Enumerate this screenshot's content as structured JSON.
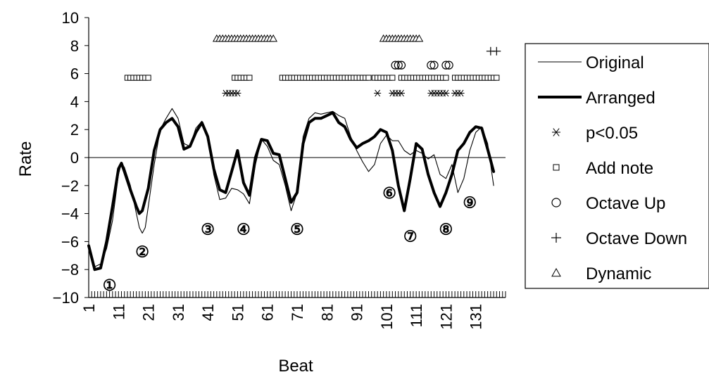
{
  "chart_data": {
    "type": "line",
    "xlabel": "Beat",
    "ylabel": "Rate",
    "ylim": [
      -10,
      10
    ],
    "yticks": [
      10,
      8,
      6,
      4,
      2,
      0,
      -2,
      -4,
      -6,
      -8,
      -10
    ],
    "ytick_labels": [
      "10",
      "8",
      "6",
      "4",
      "2",
      "0",
      "−2",
      "−4",
      "−6",
      "−8",
      "−10"
    ],
    "xlim": [
      1,
      141
    ],
    "xticks": [
      1,
      11,
      21,
      31,
      41,
      51,
      61,
      71,
      81,
      91,
      101,
      111,
      121,
      131
    ],
    "xtick_labels": [
      "1",
      "11",
      "21",
      "31",
      "41",
      "51",
      "61",
      "71",
      "81",
      "91",
      "101",
      "111",
      "121",
      "131"
    ],
    "zero_line": true,
    "series": [
      {
        "name": "Original",
        "style": "thin",
        "points": [
          [
            1,
            -6.5
          ],
          [
            3,
            -7.8
          ],
          [
            5,
            -7.6
          ],
          [
            7,
            -6.5
          ],
          [
            9,
            -4.5
          ],
          [
            11,
            -1.2
          ],
          [
            12,
            -0.4
          ],
          [
            13,
            -0.7
          ],
          [
            15,
            -2
          ],
          [
            17,
            -4
          ],
          [
            18,
            -5
          ],
          [
            19,
            -5.4
          ],
          [
            20,
            -5
          ],
          [
            21,
            -3.5
          ],
          [
            23,
            -0.5
          ],
          [
            25,
            2
          ],
          [
            27,
            2.8
          ],
          [
            29,
            3.5
          ],
          [
            31,
            2.8
          ],
          [
            33,
            1
          ],
          [
            35,
            0.8
          ],
          [
            37,
            2.1
          ],
          [
            39,
            2.6
          ],
          [
            41,
            1.6
          ],
          [
            43,
            -1.2
          ],
          [
            45,
            -3
          ],
          [
            47,
            -2.9
          ],
          [
            49,
            -2.2
          ],
          [
            51,
            -2.3
          ],
          [
            53,
            -2.6
          ],
          [
            55,
            -3.3
          ],
          [
            57,
            -0.5
          ],
          [
            59,
            1.3
          ],
          [
            61,
            0.8
          ],
          [
            63,
            -0.2
          ],
          [
            65,
            -0.5
          ],
          [
            67,
            -2
          ],
          [
            69,
            -3.8
          ],
          [
            71,
            -2.5
          ],
          [
            73,
            1.5
          ],
          [
            75,
            2.8
          ],
          [
            77,
            3.2
          ],
          [
            79,
            3.1
          ],
          [
            81,
            3.2
          ],
          [
            83,
            3.3
          ],
          [
            85,
            3
          ],
          [
            87,
            2.8
          ],
          [
            89,
            1.5
          ],
          [
            91,
            0.5
          ],
          [
            93,
            -0.3
          ],
          [
            95,
            -1
          ],
          [
            97,
            -0.5
          ],
          [
            99,
            1
          ],
          [
            101,
            1.6
          ],
          [
            103,
            1.2
          ],
          [
            105,
            1.2
          ],
          [
            107,
            0.5
          ],
          [
            109,
            0.2
          ],
          [
            111,
            0.5
          ],
          [
            113,
            0.3
          ],
          [
            115,
            -0.1
          ],
          [
            117,
            0.2
          ],
          [
            119,
            -1.2
          ],
          [
            121,
            -1.5
          ],
          [
            123,
            -0.5
          ],
          [
            125,
            -2.5
          ],
          [
            127,
            -1.5
          ],
          [
            129,
            0.5
          ],
          [
            131,
            1.8
          ],
          [
            133,
            2.2
          ],
          [
            135,
            1
          ],
          [
            137,
            -2
          ]
        ]
      },
      {
        "name": "Arranged",
        "style": "thick",
        "points": [
          [
            1,
            -6.3
          ],
          [
            3,
            -8
          ],
          [
            5,
            -7.9
          ],
          [
            7,
            -6
          ],
          [
            9,
            -3.5
          ],
          [
            11,
            -0.8
          ],
          [
            12,
            -0.4
          ],
          [
            13,
            -1
          ],
          [
            15,
            -2.3
          ],
          [
            17,
            -3.5
          ],
          [
            18,
            -4
          ],
          [
            19,
            -3.8
          ],
          [
            20,
            -3
          ],
          [
            21,
            -2.2
          ],
          [
            23,
            0.5
          ],
          [
            25,
            2
          ],
          [
            27,
            2.5
          ],
          [
            29,
            2.8
          ],
          [
            31,
            2.2
          ],
          [
            33,
            0.6
          ],
          [
            35,
            0.8
          ],
          [
            37,
            1.8
          ],
          [
            39,
            2.5
          ],
          [
            41,
            1.5
          ],
          [
            43,
            -0.8
          ],
          [
            45,
            -2.3
          ],
          [
            47,
            -2.5
          ],
          [
            49,
            -1
          ],
          [
            51,
            0.5
          ],
          [
            53,
            -1.8
          ],
          [
            55,
            -2.7
          ],
          [
            57,
            0
          ],
          [
            59,
            1.3
          ],
          [
            61,
            1.2
          ],
          [
            63,
            0.3
          ],
          [
            65,
            0.2
          ],
          [
            67,
            -1.5
          ],
          [
            69,
            -3.2
          ],
          [
            71,
            -2.5
          ],
          [
            73,
            1
          ],
          [
            75,
            2.5
          ],
          [
            77,
            2.8
          ],
          [
            79,
            2.8
          ],
          [
            81,
            3
          ],
          [
            83,
            3.2
          ],
          [
            85,
            2.5
          ],
          [
            87,
            2.2
          ],
          [
            89,
            1.3
          ],
          [
            91,
            0.7
          ],
          [
            93,
            1
          ],
          [
            95,
            1.2
          ],
          [
            97,
            1.5
          ],
          [
            99,
            2
          ],
          [
            101,
            1.8
          ],
          [
            103,
            0.5
          ],
          [
            105,
            -2
          ],
          [
            107,
            -3.8
          ],
          [
            109,
            -1.5
          ],
          [
            111,
            1
          ],
          [
            113,
            0.6
          ],
          [
            115,
            -1.2
          ],
          [
            117,
            -2.5
          ],
          [
            119,
            -3.5
          ],
          [
            121,
            -2.5
          ],
          [
            123,
            -1.2
          ],
          [
            125,
            0.5
          ],
          [
            127,
            1
          ],
          [
            129,
            1.8
          ],
          [
            131,
            2.2
          ],
          [
            133,
            2.1
          ],
          [
            135,
            0.6
          ],
          [
            137,
            -1
          ]
        ]
      }
    ],
    "marker_series": [
      {
        "name": "p<0.05",
        "symbol": "asterisk",
        "y": 4.6,
        "x": [
          47,
          48,
          49,
          50,
          51,
          98,
          103,
          104,
          105,
          106,
          116,
          117,
          118,
          119,
          120,
          121,
          124,
          125,
          126
        ]
      },
      {
        "name": "Add note",
        "symbol": "square",
        "y": 5.7,
        "x": [
          14,
          15,
          16,
          17,
          18,
          19,
          20,
          21,
          50,
          51,
          52,
          53,
          54,
          55,
          66,
          67,
          68,
          69,
          70,
          71,
          72,
          73,
          74,
          75,
          76,
          77,
          78,
          79,
          80,
          81,
          82,
          83,
          84,
          85,
          86,
          87,
          88,
          89,
          90,
          91,
          92,
          93,
          94,
          95,
          97,
          98,
          99,
          100,
          101,
          102,
          103,
          106,
          107,
          108,
          109,
          110,
          111,
          112,
          113,
          114,
          115,
          116,
          117,
          118,
          119,
          120,
          121,
          124,
          125,
          126,
          127,
          128,
          129,
          130,
          131,
          132,
          133,
          134,
          135,
          136,
          137,
          138
        ]
      },
      {
        "name": "Octave Up",
        "symbol": "circle",
        "y": 6.6,
        "x": [
          104,
          105,
          106,
          116,
          117,
          121,
          122
        ]
      },
      {
        "name": "Octave Down",
        "symbol": "plus",
        "y": 7.6,
        "x": [
          136,
          138
        ]
      },
      {
        "name": "Dynamic",
        "symbol": "triangle",
        "y": 8.5,
        "x": [
          44,
          45,
          46,
          47,
          48,
          49,
          50,
          51,
          52,
          53,
          54,
          55,
          56,
          57,
          58,
          59,
          60,
          61,
          62,
          63,
          100,
          101,
          102,
          103,
          104,
          105,
          106,
          107,
          108,
          109,
          110,
          111,
          112
        ]
      }
    ],
    "annotations": [
      {
        "text": "①",
        "x": 8,
        "y": -9.1
      },
      {
        "text": "②",
        "x": 19,
        "y": -6.7
      },
      {
        "text": "③",
        "x": 41,
        "y": -5.1
      },
      {
        "text": "④",
        "x": 53,
        "y": -5.1
      },
      {
        "text": "⑤",
        "x": 71,
        "y": -5.1
      },
      {
        "text": "⑥",
        "x": 102,
        "y": -2.5
      },
      {
        "text": "⑦",
        "x": 109,
        "y": -5.6
      },
      {
        "text": "⑧",
        "x": 121,
        "y": -5.1
      },
      {
        "text": "⑨",
        "x": 129,
        "y": -3.2
      }
    ],
    "legend": {
      "placement": "right",
      "items": [
        {
          "label": "Original",
          "symbol": "line-thin"
        },
        {
          "label": "Arranged",
          "symbol": "line-thick"
        },
        {
          "label": "p<0.05",
          "symbol": "asterisk"
        },
        {
          "label": "Add note",
          "symbol": "square"
        },
        {
          "label": "Octave Up",
          "symbol": "circle"
        },
        {
          "label": "Octave Down",
          "symbol": "plus"
        },
        {
          "label": "Dynamic",
          "symbol": "triangle"
        }
      ]
    },
    "grid": false
  }
}
